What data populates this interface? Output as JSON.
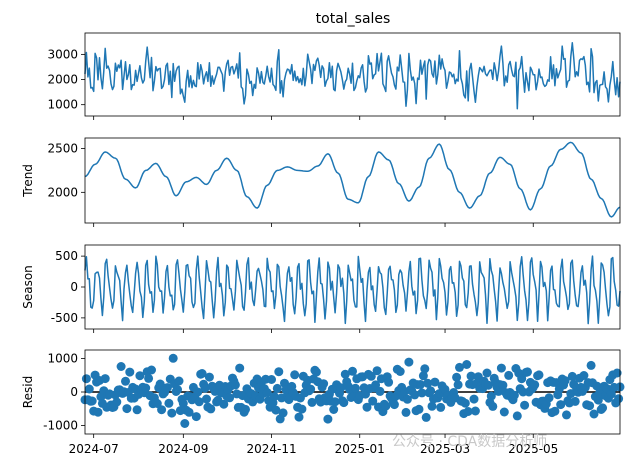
{
  "figure": {
    "title": "total_sales",
    "watermark": "公众号 · CDA数据分析师",
    "x_tick_labels": [
      "2024-07",
      "2024-09",
      "2024-11",
      "2025-01",
      "2025-03",
      "2025-05"
    ]
  },
  "chart_data": [
    {
      "type": "line",
      "name": "observed",
      "title": "total_sales",
      "ylabel": "",
      "ylim": [
        550,
        3850
      ],
      "yticks": [
        1000,
        2000,
        3000
      ],
      "xlim": [
        "2024-06-25",
        "2025-06-30"
      ],
      "color": "#1f77b4",
      "x_start": "2024-06-25",
      "n_points": 371,
      "sample_values": [
        2200,
        1500,
        2900,
        2600,
        3200,
        1600,
        2400,
        2800,
        1300,
        3000
      ]
    },
    {
      "type": "line",
      "name": "trend",
      "title": "",
      "ylabel": "Trend",
      "ylim": [
        1650,
        2620
      ],
      "yticks": [
        2000,
        2500
      ],
      "color": "#1f77b4",
      "points": [
        [
          "2024-06-25",
          2180
        ],
        [
          "2024-07-02",
          2320
        ],
        [
          "2024-07-09",
          2460
        ],
        [
          "2024-07-16",
          2390
        ],
        [
          "2024-07-23",
          2150
        ],
        [
          "2024-07-30",
          2050
        ],
        [
          "2024-08-06",
          2250
        ],
        [
          "2024-08-13",
          2330
        ],
        [
          "2024-08-20",
          2180
        ],
        [
          "2024-08-27",
          1960
        ],
        [
          "2024-09-03",
          2120
        ],
        [
          "2024-09-10",
          2170
        ],
        [
          "2024-09-17",
          2090
        ],
        [
          "2024-09-24",
          2250
        ],
        [
          "2024-10-01",
          2390
        ],
        [
          "2024-10-08",
          2250
        ],
        [
          "2024-10-15",
          1950
        ],
        [
          "2024-10-22",
          1820
        ],
        [
          "2024-10-29",
          2080
        ],
        [
          "2024-11-05",
          2250
        ],
        [
          "2024-11-12",
          2290
        ],
        [
          "2024-11-19",
          2250
        ],
        [
          "2024-11-26",
          2240
        ],
        [
          "2024-12-03",
          2300
        ],
        [
          "2024-12-10",
          2440
        ],
        [
          "2024-12-17",
          2220
        ],
        [
          "2024-12-24",
          1920
        ],
        [
          "2024-12-31",
          1880
        ],
        [
          "2025-01-07",
          2180
        ],
        [
          "2025-01-14",
          2460
        ],
        [
          "2025-01-21",
          2370
        ],
        [
          "2025-01-28",
          2100
        ],
        [
          "2025-02-04",
          1900
        ],
        [
          "2025-02-11",
          2060
        ],
        [
          "2025-02-18",
          2390
        ],
        [
          "2025-02-25",
          2550
        ],
        [
          "2025-03-04",
          2260
        ],
        [
          "2025-03-11",
          2000
        ],
        [
          "2025-03-18",
          1820
        ],
        [
          "2025-03-25",
          1960
        ],
        [
          "2025-04-01",
          2220
        ],
        [
          "2025-04-08",
          2400
        ],
        [
          "2025-04-15",
          2320
        ],
        [
          "2025-04-22",
          2040
        ],
        [
          "2025-04-29",
          1800
        ],
        [
          "2025-05-06",
          2040
        ],
        [
          "2025-05-13",
          2300
        ],
        [
          "2025-05-20",
          2490
        ],
        [
          "2025-05-27",
          2570
        ],
        [
          "2025-06-03",
          2450
        ],
        [
          "2025-06-10",
          2150
        ],
        [
          "2025-06-17",
          1930
        ],
        [
          "2025-06-24",
          1720
        ],
        [
          "2025-06-30",
          1830
        ]
      ]
    },
    {
      "type": "line",
      "name": "season",
      "title": "",
      "ylabel": "Season",
      "ylim": [
        -680,
        680
      ],
      "yticks": [
        -500,
        0,
        500
      ],
      "color": "#1f77b4",
      "n_points": 371,
      "sample_values": [
        -400,
        350,
        -200,
        500,
        -550,
        250,
        100,
        -350,
        450,
        -150
      ]
    },
    {
      "type": "scatter",
      "name": "resid",
      "title": "",
      "ylabel": "Resid",
      "ylim": [
        -1250,
        1250
      ],
      "yticks": [
        -1000,
        0,
        1000
      ],
      "color": "#1f77b4",
      "baseline": 0,
      "n_points": 371,
      "sample_values": [
        120,
        -300,
        700,
        -850,
        40,
        900,
        -1100,
        350,
        -500,
        250
      ]
    }
  ]
}
